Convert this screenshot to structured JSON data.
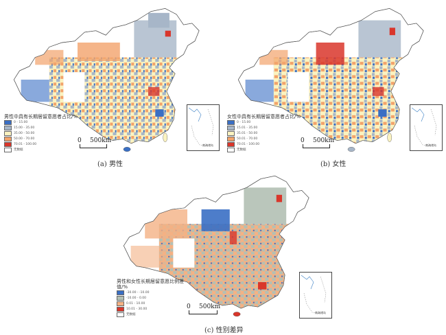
{
  "panels": [
    {
      "caption": "(a) 男性",
      "legend_title": "男性中具有长期居留意愿者占比/%",
      "legend": [
        {
          "label": "0 - 15.00",
          "color": "#3a6fc4"
        },
        {
          "label": "15.00 - 35.00",
          "color": "#a7b6c8"
        },
        {
          "label": "35.00 - 50.00",
          "color": "#fbf3c0"
        },
        {
          "label": "50.00 - 70.00",
          "color": "#f2a36b"
        },
        {
          "label": "70.01 - 100.00",
          "color": "#d9362b"
        },
        {
          "label": "无数据",
          "color": "#ffffff"
        }
      ],
      "scale": {
        "zero": "0",
        "distance": "500km"
      },
      "inset_label": "南海诸岛"
    },
    {
      "caption": "(b) 女性",
      "legend_title": "女性中具有长期居留意愿者占比/%",
      "legend": [
        {
          "label": "0 - 15.00",
          "color": "#3a6fc4"
        },
        {
          "label": "15.01 - 35.00",
          "color": "#a7b6c8"
        },
        {
          "label": "35.01 - 50.00",
          "color": "#fbf3c0"
        },
        {
          "label": "50.01 - 70.00",
          "color": "#f2a36b"
        },
        {
          "label": "70.01 - 100.00",
          "color": "#d9362b"
        },
        {
          "label": "无数据",
          "color": "#ffffff"
        }
      ],
      "scale": {
        "zero": "0",
        "distance": "500km"
      },
      "inset_label": "南海诸岛"
    },
    {
      "caption": "(c) 性别差异",
      "legend_title": "男性和女性长期居留意愿比例差值/%",
      "legend": [
        {
          "label": "-30.00 - -10.00",
          "color": "#3a6fc4"
        },
        {
          "label": "-10.00 - 0.00",
          "color": "#b3c0b4"
        },
        {
          "label": "0.01 - 10.00",
          "color": "#f4b184"
        },
        {
          "label": "10.01 - 30.00",
          "color": "#d9362b"
        },
        {
          "label": "无数据",
          "color": "#ffffff"
        }
      ],
      "scale": {
        "zero": "0",
        "distance": "500km"
      },
      "inset_label": "南海诸岛"
    }
  ]
}
